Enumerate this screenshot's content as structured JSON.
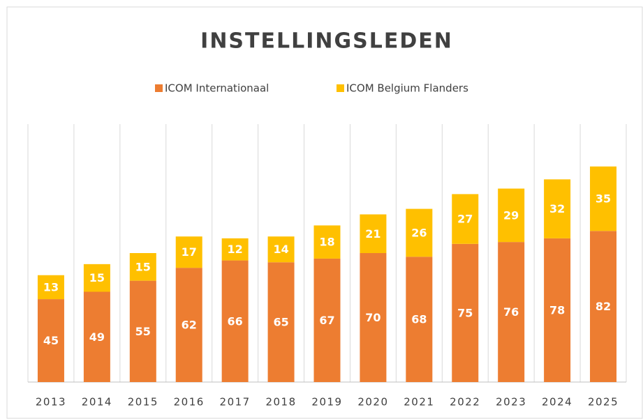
{
  "chart_data": {
    "type": "stacked_bar",
    "title": "INSTELLINGSLEDEN",
    "categories": [
      "2013",
      "2014",
      "2015",
      "2016",
      "2017",
      "2018",
      "2019",
      "2020",
      "2021",
      "2022",
      "2023",
      "2024",
      "2025"
    ],
    "series": [
      {
        "name": "ICOM Internationaal",
        "color": "#ed7d31",
        "values": [
          45,
          49,
          55,
          62,
          66,
          65,
          67,
          70,
          68,
          75,
          76,
          78,
          82
        ]
      },
      {
        "name": "ICOM Belgium Flanders",
        "color": "#ffc000",
        "values": [
          13,
          15,
          15,
          17,
          12,
          14,
          18,
          21,
          26,
          27,
          29,
          32,
          35
        ]
      }
    ],
    "ylim": [
      0,
      140
    ],
    "legend": "top"
  }
}
